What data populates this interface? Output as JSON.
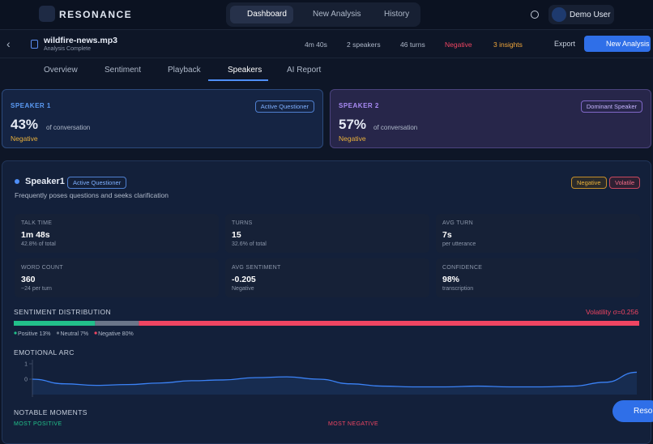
{
  "nav": {
    "brand": "RESONANCE",
    "items": [
      "Dashboard",
      "New Analysis",
      "History"
    ],
    "user": "Demo User"
  },
  "file": {
    "name": "wildfire-news.mp3",
    "status": "Analysis Complete",
    "stats": [
      "4m 40s",
      "2 speakers",
      "46 turns",
      "Negative",
      "3 insights"
    ],
    "export": "Export",
    "new_analysis": "New Analysis"
  },
  "tabs": [
    "Overview",
    "Sentiment",
    "Playback",
    "Speakers",
    "AI Report"
  ],
  "speaker_cards": [
    {
      "label": "SPEAKER 1",
      "badge": "Active Questioner",
      "share": "43%",
      "share_text": "of conversation",
      "sentiment": "Negative"
    },
    {
      "label": "SPEAKER 2",
      "badge": "Dominant Speaker",
      "share": "57%",
      "share_text": "of conversation",
      "sentiment": "Negative"
    }
  ],
  "detail": {
    "name": "Speaker1",
    "badge": "Active Questioner",
    "description": "Frequently poses questions and seeks clarification",
    "tags": [
      "Negative",
      "Volatile"
    ],
    "metrics": [
      {
        "label": "TALK TIME",
        "value": "1m 48s",
        "sub": "42.8% of total"
      },
      {
        "label": "TURNS",
        "value": "15",
        "sub": "32.6% of total"
      },
      {
        "label": "AVG TURN",
        "value": "7s",
        "sub": "per utterance"
      },
      {
        "label": "WORD COUNT",
        "value": "360",
        "sub": "~24 per turn"
      },
      {
        "label": "AVG SENTIMENT",
        "value": "-0.205",
        "sub": "Negative"
      },
      {
        "label": "CONFIDENCE",
        "value": "98%",
        "sub": "transcription"
      }
    ]
  },
  "sentiment_distribution": {
    "title": "SENTIMENT DISTRIBUTION",
    "volatility": "Volatility σ=0.256",
    "segments": [
      {
        "name": "Positive",
        "value": 13,
        "label": "Positive 13%",
        "color": "#22c08a"
      },
      {
        "name": "Neutral",
        "value": 7,
        "label": "Neutral 7%",
        "color": "#6b7689"
      },
      {
        "name": "Negative",
        "value": 80,
        "label": "Negative 80%",
        "color": "#ef4562"
      }
    ]
  },
  "emotional_arc": {
    "type": "line",
    "title": "EMOTIONAL ARC",
    "values": [
      0,
      -0.3,
      -0.4,
      -0.35,
      -0.25,
      -0.1,
      -0.05,
      0.1,
      0.15,
      0,
      -0.3,
      -0.45,
      -0.5,
      -0.5,
      -0.45,
      -0.5,
      -0.5,
      -0.45,
      -0.2,
      0.45
    ],
    "ylim": [
      -1,
      1
    ],
    "yticks": [
      1,
      0
    ],
    "color": "#3b82f6"
  },
  "notable_moments": {
    "title": "NOTABLE MOMENTS",
    "most_positive": "MOST POSITIVE",
    "most_negative": "MOST NEGATIVE"
  },
  "assistant_button": "Reson"
}
